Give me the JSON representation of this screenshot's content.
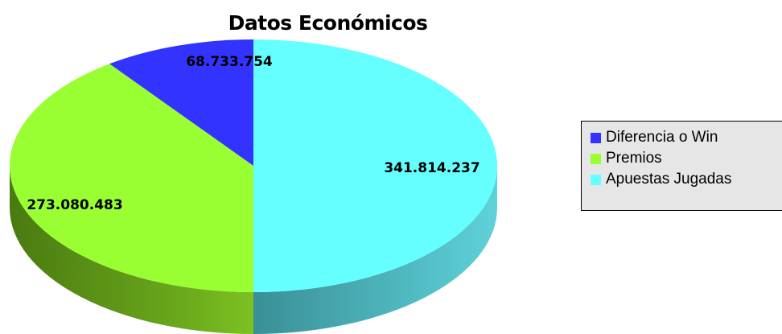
{
  "chart_data": {
    "type": "pie",
    "title": "Datos Económicos",
    "slices": [
      {
        "name": "Diferencia o Win",
        "value": 68733754,
        "label": "68.733.754",
        "color": "#3333ff"
      },
      {
        "name": "Premios",
        "value": 273080483,
        "label": "273.080.483",
        "color": "#99ff33"
      },
      {
        "name": "Apuestas Jugadas",
        "value": 341814237,
        "label": "341.814.237",
        "color": "#66ffff"
      }
    ],
    "legend_placement": "right",
    "three_d": true
  }
}
